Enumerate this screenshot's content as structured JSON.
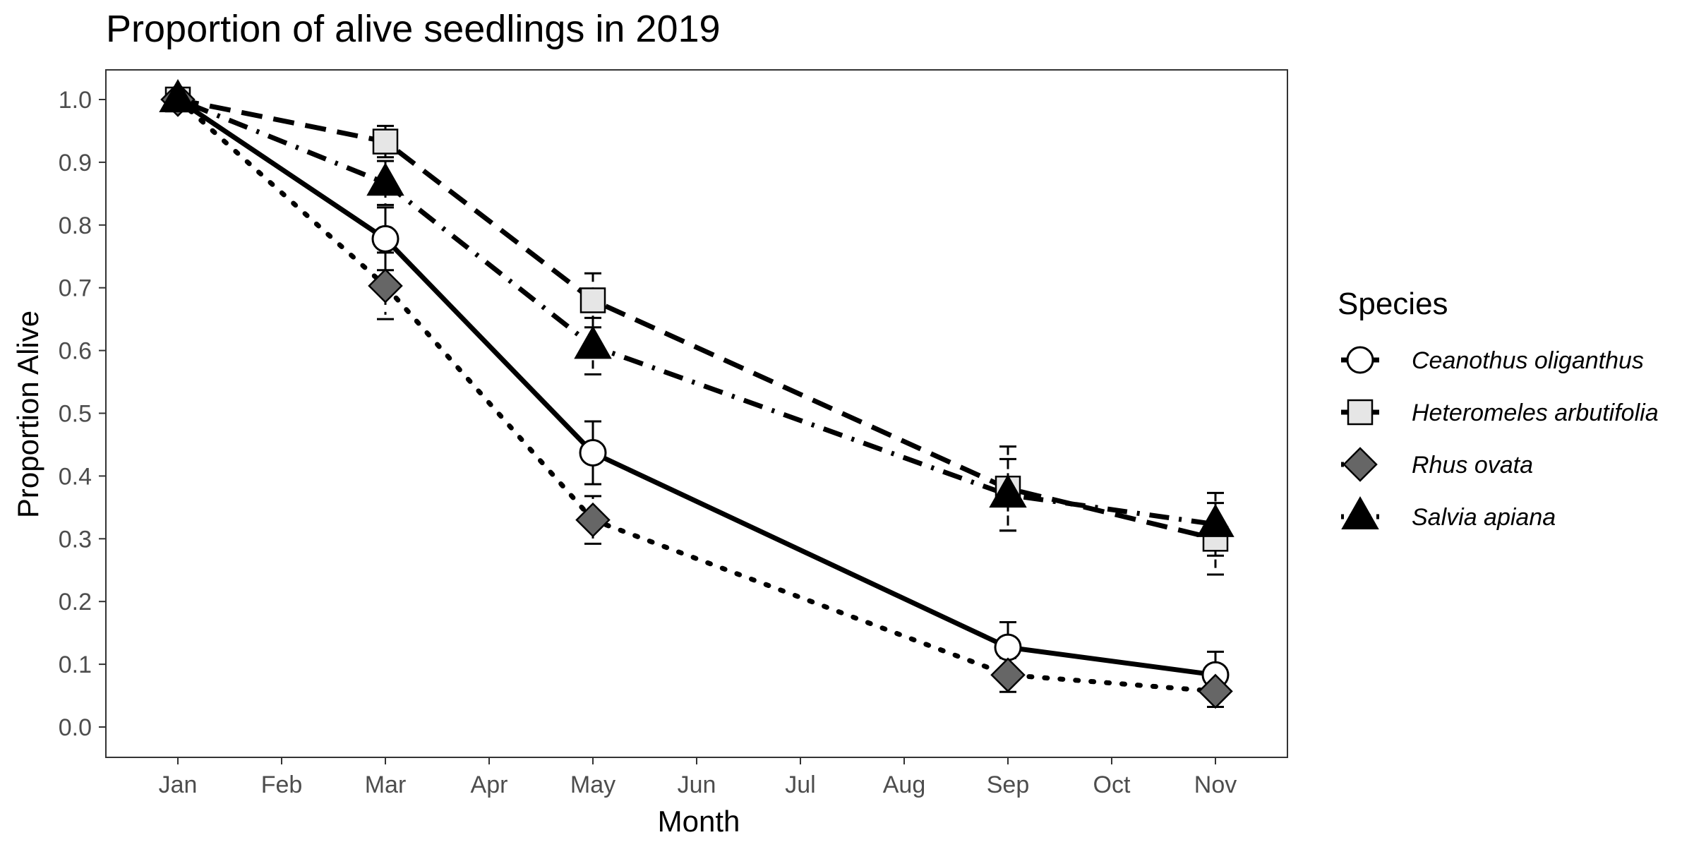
{
  "chart_data": {
    "type": "line",
    "title": "Proportion of alive seedlings in 2019",
    "xlabel": "Month",
    "ylabel": "Proportion Alive",
    "categories": [
      "Jan",
      "Feb",
      "Mar",
      "Apr",
      "May",
      "Jun",
      "Jul",
      "Aug",
      "Sep",
      "Oct",
      "Nov"
    ],
    "yticks": [
      "0.0",
      "0.1",
      "0.2",
      "0.3",
      "0.4",
      "0.5",
      "0.6",
      "0.7",
      "0.8",
      "0.9",
      "1.0"
    ],
    "ylim": [
      -0.05,
      1.05
    ],
    "grid": false,
    "legend": {
      "title": "Species",
      "position": "right"
    },
    "series": [
      {
        "name": "Ceanothus oligantha",
        "display_name": "Ceanothus oliganthus",
        "line": "solid",
        "marker": "circle-open",
        "color": "#000000",
        "fill": "#ffffff",
        "x": [
          "Jan",
          "Mar",
          "May",
          "Sep",
          "Nov"
        ],
        "y": [
          1.0,
          0.778,
          0.437,
          0.127,
          0.083
        ],
        "err": [
          0.0,
          0.05,
          0.05,
          0.04,
          0.037
        ]
      },
      {
        "name": "Heteromeles arbutifolia",
        "display_name": "Heteromeles arbutifolia",
        "line": "dashed",
        "marker": "square",
        "color": "#000000",
        "fill": "#e6e6e6",
        "x": [
          "Jan",
          "Mar",
          "May",
          "Sep",
          "Nov"
        ],
        "y": [
          1.0,
          0.933,
          0.68,
          0.38,
          0.3
        ],
        "err": [
          0.0,
          0.025,
          0.043,
          0.067,
          0.057
        ]
      },
      {
        "name": "Rhus ovata",
        "display_name": "Rhus ovata",
        "line": "dotted",
        "marker": "diamond",
        "color": "#000000",
        "fill": "#666666",
        "x": [
          "Jan",
          "Mar",
          "May",
          "Sep",
          "Nov"
        ],
        "y": [
          1.0,
          0.703,
          0.33,
          0.083,
          0.057
        ],
        "err": [
          0.0,
          0.053,
          0.038,
          0.027,
          0.025
        ]
      },
      {
        "name": "Salvia apiana",
        "display_name": "Salvia apiana",
        "line": "dotdash",
        "marker": "triangle",
        "color": "#000000",
        "fill": "#000000",
        "x": [
          "Jan",
          "Mar",
          "May",
          "Sep",
          "Nov"
        ],
        "y": [
          1.0,
          0.867,
          0.607,
          0.37,
          0.323
        ],
        "err": [
          0.0,
          0.035,
          0.045,
          0.057,
          0.05
        ]
      }
    ]
  }
}
